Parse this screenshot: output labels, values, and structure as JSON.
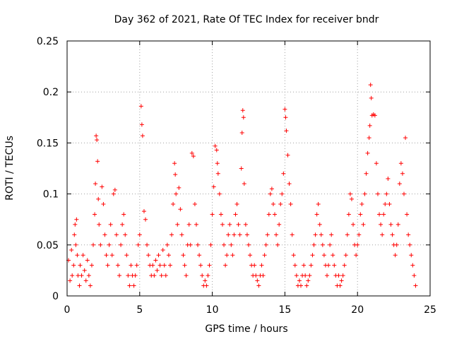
{
  "chart_data": {
    "type": "scatter",
    "title": "Day 362 of 2021, Rate Of TEC Index for receiver bndr",
    "xlabel": "GPS time / hours",
    "ylabel": "ROTI / TECUs",
    "xlim": [
      0,
      25
    ],
    "ylim": [
      0,
      0.25
    ],
    "x_ticks": [
      0,
      5,
      10,
      15,
      20,
      25
    ],
    "x_tick_labels": [
      "0",
      "5",
      "10",
      "15",
      "20",
      "25"
    ],
    "y_ticks": [
      0,
      0.05,
      0.1,
      0.15,
      0.2,
      0.25
    ],
    "y_tick_labels": [
      "0",
      "0.05",
      "0.1",
      "0.15",
      "0.2",
      "0.25"
    ],
    "grid": true,
    "marker": "+",
    "color": "#ff0000",
    "series": [
      {
        "name": "ROTI",
        "points": [
          [
            0.1,
            0.035
          ],
          [
            0.2,
            0.015
          ],
          [
            0.3,
            0.045
          ],
          [
            0.35,
            0.02
          ],
          [
            0.45,
            0.03
          ],
          [
            0.5,
            0.06
          ],
          [
            0.55,
            0.07
          ],
          [
            0.6,
            0.05
          ],
          [
            0.65,
            0.075
          ],
          [
            0.7,
            0.04
          ],
          [
            0.75,
            0.02
          ],
          [
            0.85,
            0.01
          ],
          [
            0.9,
            0.03
          ],
          [
            1.0,
            0.02
          ],
          [
            1.1,
            0.04
          ],
          [
            1.2,
            0.025
          ],
          [
            1.3,
            0.015
          ],
          [
            1.4,
            0.035
          ],
          [
            1.5,
            0.02
          ],
          [
            1.6,
            0.01
          ],
          [
            1.7,
            0.03
          ],
          [
            1.8,
            0.05
          ],
          [
            1.9,
            0.08
          ],
          [
            1.95,
            0.11
          ],
          [
            2.0,
            0.157
          ],
          [
            2.05,
            0.153
          ],
          [
            2.1,
            0.132
          ],
          [
            2.15,
            0.095
          ],
          [
            2.2,
            0.07
          ],
          [
            2.3,
            0.05
          ],
          [
            2.4,
            0.107
          ],
          [
            2.5,
            0.09
          ],
          [
            2.6,
            0.06
          ],
          [
            2.7,
            0.04
          ],
          [
            2.8,
            0.03
          ],
          [
            2.9,
            0.05
          ],
          [
            3.0,
            0.07
          ],
          [
            3.1,
            0.04
          ],
          [
            3.2,
            0.1
          ],
          [
            3.3,
            0.104
          ],
          [
            3.4,
            0.06
          ],
          [
            3.5,
            0.03
          ],
          [
            3.6,
            0.02
          ],
          [
            3.7,
            0.05
          ],
          [
            3.8,
            0.07
          ],
          [
            3.9,
            0.08
          ],
          [
            4.0,
            0.06
          ],
          [
            4.1,
            0.04
          ],
          [
            4.2,
            0.02
          ],
          [
            4.3,
            0.01
          ],
          [
            4.4,
            0.03
          ],
          [
            4.5,
            0.02
          ],
          [
            4.6,
            0.01
          ],
          [
            4.7,
            0.02
          ],
          [
            4.8,
            0.03
          ],
          [
            4.9,
            0.05
          ],
          [
            5.0,
            0.06
          ],
          [
            5.1,
            0.186
          ],
          [
            5.15,
            0.168
          ],
          [
            5.2,
            0.157
          ],
          [
            5.3,
            0.083
          ],
          [
            5.4,
            0.075
          ],
          [
            5.5,
            0.05
          ],
          [
            5.6,
            0.04
          ],
          [
            5.7,
            0.03
          ],
          [
            5.8,
            0.02
          ],
          [
            5.9,
            0.03
          ],
          [
            6.0,
            0.02
          ],
          [
            6.1,
            0.035
          ],
          [
            6.2,
            0.025
          ],
          [
            6.3,
            0.04
          ],
          [
            6.4,
            0.03
          ],
          [
            6.5,
            0.02
          ],
          [
            6.6,
            0.045
          ],
          [
            6.7,
            0.03
          ],
          [
            6.8,
            0.02
          ],
          [
            6.9,
            0.05
          ],
          [
            7.0,
            0.04
          ],
          [
            7.1,
            0.03
          ],
          [
            7.2,
            0.06
          ],
          [
            7.3,
            0.09
          ],
          [
            7.4,
            0.13
          ],
          [
            7.45,
            0.119
          ],
          [
            7.5,
            0.1
          ],
          [
            7.6,
            0.07
          ],
          [
            7.7,
            0.106
          ],
          [
            7.8,
            0.085
          ],
          [
            7.9,
            0.06
          ],
          [
            8.0,
            0.04
          ],
          [
            8.1,
            0.03
          ],
          [
            8.2,
            0.02
          ],
          [
            8.3,
            0.05
          ],
          [
            8.4,
            0.07
          ],
          [
            8.5,
            0.05
          ],
          [
            8.6,
            0.14
          ],
          [
            8.7,
            0.137
          ],
          [
            8.8,
            0.09
          ],
          [
            8.9,
            0.07
          ],
          [
            9.0,
            0.05
          ],
          [
            9.1,
            0.04
          ],
          [
            9.2,
            0.03
          ],
          [
            9.3,
            0.02
          ],
          [
            9.4,
            0.01
          ],
          [
            9.5,
            0.015
          ],
          [
            9.6,
            0.01
          ],
          [
            9.7,
            0.02
          ],
          [
            9.8,
            0.03
          ],
          [
            9.9,
            0.05
          ],
          [
            10.0,
            0.08
          ],
          [
            10.1,
            0.107
          ],
          [
            10.2,
            0.147
          ],
          [
            10.3,
            0.143
          ],
          [
            10.35,
            0.13
          ],
          [
            10.4,
            0.12
          ],
          [
            10.5,
            0.1
          ],
          [
            10.6,
            0.08
          ],
          [
            10.7,
            0.07
          ],
          [
            10.8,
            0.05
          ],
          [
            10.9,
            0.03
          ],
          [
            11.0,
            0.04
          ],
          [
            11.1,
            0.06
          ],
          [
            11.2,
            0.07
          ],
          [
            11.3,
            0.05
          ],
          [
            11.4,
            0.04
          ],
          [
            11.5,
            0.06
          ],
          [
            11.6,
            0.08
          ],
          [
            11.7,
            0.09
          ],
          [
            11.8,
            0.07
          ],
          [
            11.9,
            0.06
          ],
          [
            12.0,
            0.125
          ],
          [
            12.05,
            0.16
          ],
          [
            12.1,
            0.182
          ],
          [
            12.15,
            0.175
          ],
          [
            12.2,
            0.11
          ],
          [
            12.3,
            0.07
          ],
          [
            12.4,
            0.06
          ],
          [
            12.5,
            0.05
          ],
          [
            12.6,
            0.04
          ],
          [
            12.7,
            0.03
          ],
          [
            12.8,
            0.02
          ],
          [
            12.9,
            0.03
          ],
          [
            13.0,
            0.02
          ],
          [
            13.1,
            0.015
          ],
          [
            13.2,
            0.01
          ],
          [
            13.3,
            0.02
          ],
          [
            13.4,
            0.03
          ],
          [
            13.5,
            0.02
          ],
          [
            13.6,
            0.04
          ],
          [
            13.7,
            0.05
          ],
          [
            13.8,
            0.06
          ],
          [
            13.9,
            0.08
          ],
          [
            14.0,
            0.1
          ],
          [
            14.1,
            0.105
          ],
          [
            14.2,
            0.09
          ],
          [
            14.3,
            0.08
          ],
          [
            14.4,
            0.06
          ],
          [
            14.5,
            0.05
          ],
          [
            14.6,
            0.07
          ],
          [
            14.7,
            0.09
          ],
          [
            14.8,
            0.1
          ],
          [
            14.9,
            0.12
          ],
          [
            15.0,
            0.183
          ],
          [
            15.05,
            0.175
          ],
          [
            15.1,
            0.162
          ],
          [
            15.2,
            0.138
          ],
          [
            15.3,
            0.11
          ],
          [
            15.4,
            0.09
          ],
          [
            15.5,
            0.06
          ],
          [
            15.6,
            0.04
          ],
          [
            15.7,
            0.03
          ],
          [
            15.8,
            0.02
          ],
          [
            15.9,
            0.01
          ],
          [
            16.0,
            0.015
          ],
          [
            16.1,
            0.01
          ],
          [
            16.2,
            0.02
          ],
          [
            16.3,
            0.03
          ],
          [
            16.4,
            0.02
          ],
          [
            16.5,
            0.01
          ],
          [
            16.6,
            0.015
          ],
          [
            16.7,
            0.02
          ],
          [
            16.8,
            0.03
          ],
          [
            16.9,
            0.04
          ],
          [
            17.0,
            0.05
          ],
          [
            17.1,
            0.06
          ],
          [
            17.2,
            0.08
          ],
          [
            17.3,
            0.09
          ],
          [
            17.4,
            0.07
          ],
          [
            17.5,
            0.06
          ],
          [
            17.6,
            0.05
          ],
          [
            17.7,
            0.04
          ],
          [
            17.8,
            0.03
          ],
          [
            17.9,
            0.02
          ],
          [
            18.0,
            0.03
          ],
          [
            18.1,
            0.05
          ],
          [
            18.2,
            0.06
          ],
          [
            18.3,
            0.04
          ],
          [
            18.4,
            0.03
          ],
          [
            18.5,
            0.02
          ],
          [
            18.6,
            0.01
          ],
          [
            18.7,
            0.02
          ],
          [
            18.8,
            0.01
          ],
          [
            18.9,
            0.015
          ],
          [
            19.0,
            0.02
          ],
          [
            19.1,
            0.03
          ],
          [
            19.2,
            0.04
          ],
          [
            19.3,
            0.06
          ],
          [
            19.4,
            0.08
          ],
          [
            19.5,
            0.1
          ],
          [
            19.6,
            0.095
          ],
          [
            19.7,
            0.07
          ],
          [
            19.8,
            0.05
          ],
          [
            19.9,
            0.04
          ],
          [
            20.0,
            0.05
          ],
          [
            20.1,
            0.06
          ],
          [
            20.2,
            0.08
          ],
          [
            20.3,
            0.09
          ],
          [
            20.4,
            0.07
          ],
          [
            20.5,
            0.1
          ],
          [
            20.6,
            0.12
          ],
          [
            20.7,
            0.14
          ],
          [
            20.8,
            0.155
          ],
          [
            20.85,
            0.167
          ],
          [
            20.9,
            0.207
          ],
          [
            20.95,
            0.194
          ],
          [
            21.0,
            0.177
          ],
          [
            21.1,
            0.178
          ],
          [
            21.2,
            0.177
          ],
          [
            21.3,
            0.13
          ],
          [
            21.4,
            0.1
          ],
          [
            21.5,
            0.08
          ],
          [
            21.6,
            0.07
          ],
          [
            21.7,
            0.06
          ],
          [
            21.8,
            0.08
          ],
          [
            21.9,
            0.09
          ],
          [
            22.0,
            0.1
          ],
          [
            22.1,
            0.115
          ],
          [
            22.2,
            0.09
          ],
          [
            22.3,
            0.07
          ],
          [
            22.4,
            0.06
          ],
          [
            22.5,
            0.05
          ],
          [
            22.6,
            0.04
          ],
          [
            22.7,
            0.05
          ],
          [
            22.8,
            0.07
          ],
          [
            22.9,
            0.11
          ],
          [
            23.0,
            0.13
          ],
          [
            23.1,
            0.12
          ],
          [
            23.2,
            0.1
          ],
          [
            23.3,
            0.155
          ],
          [
            23.4,
            0.08
          ],
          [
            23.5,
            0.06
          ],
          [
            23.6,
            0.05
          ],
          [
            23.7,
            0.04
          ],
          [
            23.8,
            0.03
          ],
          [
            23.9,
            0.02
          ],
          [
            24.0,
            0.01
          ]
        ]
      }
    ]
  }
}
